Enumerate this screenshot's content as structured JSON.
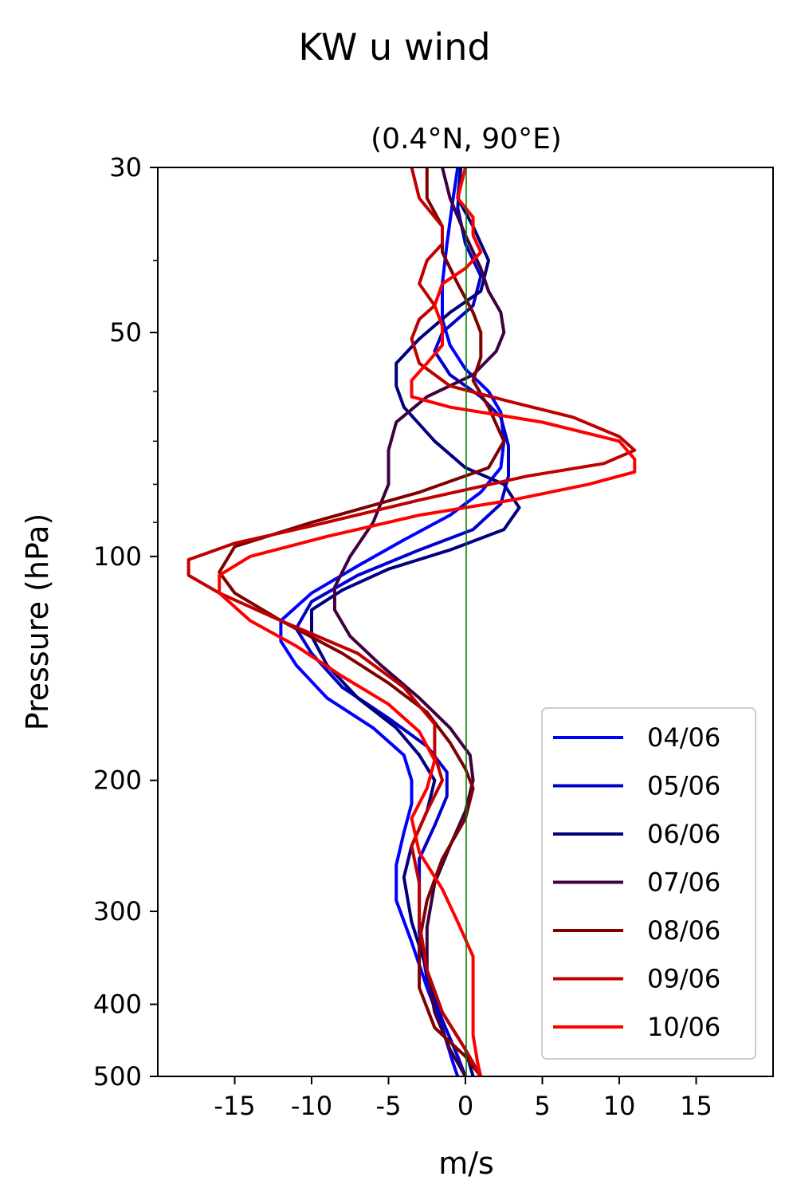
{
  "chart_data": {
    "type": "line",
    "title": "KW u wind",
    "subtitle": "(0.4°N, 90°E)",
    "xlabel": "m/s",
    "ylabel": "Pressure (hPa)",
    "xlim": [
      -20,
      20
    ],
    "ylim": [
      500,
      30
    ],
    "y_scale": "log",
    "x_ticks": [
      -15,
      -10,
      -5,
      0,
      5,
      10,
      15
    ],
    "x_tick_labels": [
      "-15",
      "-10",
      "-5",
      "0",
      "5",
      "10",
      "15"
    ],
    "y_ticks": [
      30,
      50,
      100,
      200,
      300,
      400,
      500
    ],
    "y_tick_labels": [
      "30",
      "50",
      "100",
      "200",
      "300",
      "400",
      "500"
    ],
    "y_minor_ticks": [
      40,
      60,
      70,
      80,
      90
    ],
    "grid": false,
    "zero_line_color": "#008000",
    "legend_position": "lower-right",
    "series": [
      {
        "name": "04/06",
        "color": "#0000ff",
        "points": [
          [
            -0.5,
            30
          ],
          [
            -0.8,
            33
          ],
          [
            -1.2,
            38
          ],
          [
            -1.5,
            43
          ],
          [
            -1.5,
            48
          ],
          [
            -1,
            52
          ],
          [
            0,
            56
          ],
          [
            1.5,
            60
          ],
          [
            2.3,
            64
          ],
          [
            2.5,
            70
          ],
          [
            2.3,
            76
          ],
          [
            1,
            82
          ],
          [
            -1,
            88
          ],
          [
            -4,
            95
          ],
          [
            -7,
            103
          ],
          [
            -10,
            112
          ],
          [
            -12,
            122
          ],
          [
            -12,
            130
          ],
          [
            -11,
            140
          ],
          [
            -9,
            155
          ],
          [
            -6,
            170
          ],
          [
            -4,
            185
          ],
          [
            -3.5,
            200
          ],
          [
            -3.5,
            215
          ],
          [
            -4,
            235
          ],
          [
            -4.5,
            260
          ],
          [
            -4.5,
            290
          ],
          [
            -3.5,
            330
          ],
          [
            -2.5,
            380
          ],
          [
            -1.5,
            430
          ],
          [
            -0.8,
            480
          ],
          [
            -0.5,
            500
          ]
        ]
      },
      {
        "name": "05/06",
        "color": "#0000cc",
        "points": [
          [
            -0.3,
            30
          ],
          [
            -0.5,
            34
          ],
          [
            0,
            38
          ],
          [
            1,
            42
          ],
          [
            0.5,
            46
          ],
          [
            -1.5,
            50
          ],
          [
            -2,
            53
          ],
          [
            -1,
            57
          ],
          [
            1,
            61
          ],
          [
            2.3,
            65
          ],
          [
            2.8,
            71
          ],
          [
            2.8,
            78
          ],
          [
            2.3,
            85
          ],
          [
            0.5,
            92
          ],
          [
            -3,
            98
          ],
          [
            -7,
            106
          ],
          [
            -10,
            115
          ],
          [
            -11,
            125
          ],
          [
            -10,
            135
          ],
          [
            -8,
            150
          ],
          [
            -5,
            165
          ],
          [
            -2.5,
            180
          ],
          [
            -1.2,
            195
          ],
          [
            -1.2,
            210
          ],
          [
            -2,
            230
          ],
          [
            -3,
            255
          ],
          [
            -3,
            285
          ],
          [
            -3,
            320
          ],
          [
            -2.5,
            370
          ],
          [
            -1.5,
            420
          ],
          [
            -0.5,
            470
          ],
          [
            0,
            500
          ]
        ]
      },
      {
        "name": "06/06",
        "color": "#00007f",
        "points": [
          [
            -0.3,
            30
          ],
          [
            -0.5,
            33
          ],
          [
            0.5,
            36
          ],
          [
            1.5,
            40
          ],
          [
            1,
            44
          ],
          [
            -1,
            47
          ],
          [
            -3,
            51
          ],
          [
            -4.5,
            55
          ],
          [
            -4.5,
            59
          ],
          [
            -4,
            63
          ],
          [
            -2,
            70
          ],
          [
            0,
            76
          ],
          [
            2.5,
            80
          ],
          [
            3.5,
            86
          ],
          [
            2.5,
            92
          ],
          [
            -1,
            98
          ],
          [
            -5,
            104
          ],
          [
            -8,
            111
          ],
          [
            -10,
            118
          ],
          [
            -10,
            128
          ],
          [
            -9,
            140
          ],
          [
            -7,
            155
          ],
          [
            -4.5,
            170
          ],
          [
            -3,
            185
          ],
          [
            -2,
            200
          ],
          [
            -2.5,
            220
          ],
          [
            -3.5,
            245
          ],
          [
            -4,
            270
          ],
          [
            -3.5,
            310
          ],
          [
            -2.5,
            360
          ],
          [
            -1.5,
            410
          ],
          [
            0,
            460
          ],
          [
            0.5,
            500
          ]
        ]
      },
      {
        "name": "07/06",
        "color": "#3f003f",
        "points": [
          [
            -1.5,
            30
          ],
          [
            -1,
            33
          ],
          [
            0,
            37
          ],
          [
            1,
            41
          ],
          [
            1.5,
            44
          ],
          [
            2.3,
            47
          ],
          [
            2.5,
            50
          ],
          [
            2,
            53
          ],
          [
            0.5,
            57
          ],
          [
            -2.5,
            61
          ],
          [
            -4.5,
            66
          ],
          [
            -5,
            72
          ],
          [
            -5,
            80
          ],
          [
            -6,
            90
          ],
          [
            -7.5,
            100
          ],
          [
            -8.5,
            110
          ],
          [
            -8.5,
            118
          ],
          [
            -7.5,
            128
          ],
          [
            -5.5,
            140
          ],
          [
            -3,
            155
          ],
          [
            -1,
            170
          ],
          [
            0.3,
            185
          ],
          [
            0.5,
            200
          ],
          [
            0,
            220
          ],
          [
            -1,
            245
          ],
          [
            -2,
            275
          ],
          [
            -2.5,
            315
          ],
          [
            -2.5,
            360
          ],
          [
            -2,
            410
          ],
          [
            -1,
            460
          ],
          [
            0,
            500
          ]
        ]
      },
      {
        "name": "08/06",
        "color": "#7f0000",
        "points": [
          [
            -2.5,
            30
          ],
          [
            -2.5,
            33
          ],
          [
            -1.5,
            36
          ],
          [
            -1.5,
            39
          ],
          [
            -0.5,
            43
          ],
          [
            0.5,
            47
          ],
          [
            1,
            50
          ],
          [
            1,
            54
          ],
          [
            0.5,
            58
          ],
          [
            1.5,
            63
          ],
          [
            2.5,
            70
          ],
          [
            1.5,
            76
          ],
          [
            -3,
            82
          ],
          [
            -10,
            90
          ],
          [
            -15,
            97
          ],
          [
            -16,
            105
          ],
          [
            -15,
            112
          ],
          [
            -12,
            122
          ],
          [
            -8,
            135
          ],
          [
            -5,
            148
          ],
          [
            -2.5,
            162
          ],
          [
            -1,
            178
          ],
          [
            0,
            193
          ],
          [
            0.5,
            205
          ],
          [
            0,
            225
          ],
          [
            -1.5,
            255
          ],
          [
            -2.5,
            290
          ],
          [
            -3,
            330
          ],
          [
            -3,
            380
          ],
          [
            -2,
            430
          ],
          [
            0,
            470
          ],
          [
            1,
            500
          ]
        ]
      },
      {
        "name": "09/06",
        "color": "#bf0000",
        "points": [
          [
            -3.5,
            30
          ],
          [
            -3,
            33
          ],
          [
            -1.5,
            36
          ],
          [
            -1.5,
            38
          ],
          [
            -2.5,
            40
          ],
          [
            -3,
            43
          ],
          [
            -2,
            46
          ],
          [
            -3,
            48
          ],
          [
            -3.5,
            51
          ],
          [
            -3,
            55
          ],
          [
            -1,
            59
          ],
          [
            3,
            62
          ],
          [
            7,
            65
          ],
          [
            10,
            69
          ],
          [
            11,
            72
          ],
          [
            9,
            75
          ],
          [
            4,
            78
          ],
          [
            -3,
            84
          ],
          [
            -10,
            91
          ],
          [
            -15,
            96
          ],
          [
            -18,
            101
          ],
          [
            -18,
            106
          ],
          [
            -16,
            112
          ],
          [
            -12,
            122
          ],
          [
            -7,
            135
          ],
          [
            -4,
            150
          ],
          [
            -2,
            168
          ],
          [
            -2,
            185
          ],
          [
            -1.5,
            200
          ],
          [
            -2.5,
            220
          ],
          [
            -3.5,
            245
          ],
          [
            -3,
            275
          ],
          [
            -3,
            310
          ],
          [
            -2.5,
            360
          ],
          [
            -1.5,
            410
          ],
          [
            0,
            460
          ],
          [
            1,
            500
          ]
        ]
      },
      {
        "name": "10/06",
        "color": "#ff0000",
        "points": [
          [
            0,
            30
          ],
          [
            -0.5,
            33
          ],
          [
            0.5,
            35
          ],
          [
            0.5,
            37
          ],
          [
            1,
            39
          ],
          [
            0,
            41
          ],
          [
            -1.5,
            43
          ],
          [
            -2,
            46
          ],
          [
            -1.5,
            49
          ],
          [
            -1.5,
            52
          ],
          [
            -2.5,
            55
          ],
          [
            -3.5,
            58
          ],
          [
            -3.5,
            61
          ],
          [
            -1,
            63
          ],
          [
            5,
            66
          ],
          [
            10,
            70
          ],
          [
            11,
            74
          ],
          [
            11,
            77
          ],
          [
            8,
            80
          ],
          [
            3,
            84
          ],
          [
            -3,
            88
          ],
          [
            -9,
            94
          ],
          [
            -14,
            100
          ],
          [
            -16,
            106
          ],
          [
            -16,
            112
          ],
          [
            -14,
            122
          ],
          [
            -11,
            132
          ],
          [
            -8,
            145
          ],
          [
            -5,
            158
          ],
          [
            -3,
            172
          ],
          [
            -2,
            188
          ],
          [
            -2.5,
            205
          ],
          [
            -3.5,
            225
          ],
          [
            -3,
            250
          ],
          [
            -1.5,
            280
          ],
          [
            -0.5,
            310
          ],
          [
            0.5,
            345
          ],
          [
            0.5,
            390
          ],
          [
            0.5,
            440
          ],
          [
            0.8,
            480
          ],
          [
            1,
            500
          ]
        ]
      }
    ]
  }
}
